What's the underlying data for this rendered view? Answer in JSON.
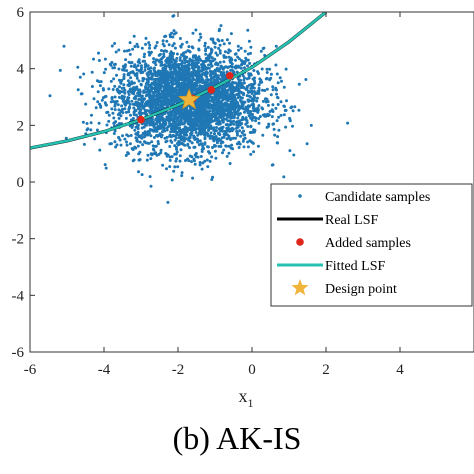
{
  "caption": "(b) AK-IS",
  "chart_data": {
    "type": "scatter",
    "xlabel": "x",
    "xlabel_subscript": "1",
    "ylabel": "",
    "xlim": [
      -6,
      6
    ],
    "ylim": [
      -6,
      6
    ],
    "xticks": [
      "-6",
      "-4",
      "-2",
      "0",
      "2",
      "4"
    ],
    "xtick_values": [
      -6,
      -4,
      -2,
      0,
      2,
      4
    ],
    "yticks": [
      "-6",
      "-4",
      "-2",
      "0",
      "2",
      "4",
      "6"
    ],
    "ytick_values": [
      -6,
      -4,
      -2,
      0,
      2,
      4,
      6
    ],
    "grid": false,
    "legend_position": "bottom-right",
    "colors": {
      "candidate": "#1f77b4",
      "real_lsf": "#000000",
      "added": "#e0261b",
      "fitted_lsf": "#26c0b0",
      "design": "#f0b43a"
    },
    "candidate_cloud": {
      "mean": [
        -1.7,
        2.9
      ],
      "std": [
        1.0,
        0.9
      ],
      "count": 3600
    },
    "lsf_curve": {
      "x": [
        -6.0,
        -5.0,
        -4.0,
        -3.0,
        -2.0,
        -1.7,
        -1.0,
        0.0,
        1.0,
        2.0
      ],
      "y": [
        1.2,
        1.45,
        1.78,
        2.2,
        2.72,
        2.9,
        3.35,
        4.05,
        4.95,
        6.0
      ]
    },
    "added_samples": {
      "x": [
        -3.0,
        -1.1,
        -0.6,
        -1.6
      ],
      "y": [
        2.2,
        3.25,
        3.75,
        2.95
      ]
    },
    "design_point": {
      "x": -1.7,
      "y": 2.9
    },
    "series": [
      {
        "name": "Candidate samples",
        "marker": "dot"
      },
      {
        "name": "Real LSF",
        "marker": "line"
      },
      {
        "name": "Added samples",
        "marker": "circle"
      },
      {
        "name": "Fitted LSF",
        "marker": "line"
      },
      {
        "name": "Design point",
        "marker": "star"
      }
    ]
  }
}
